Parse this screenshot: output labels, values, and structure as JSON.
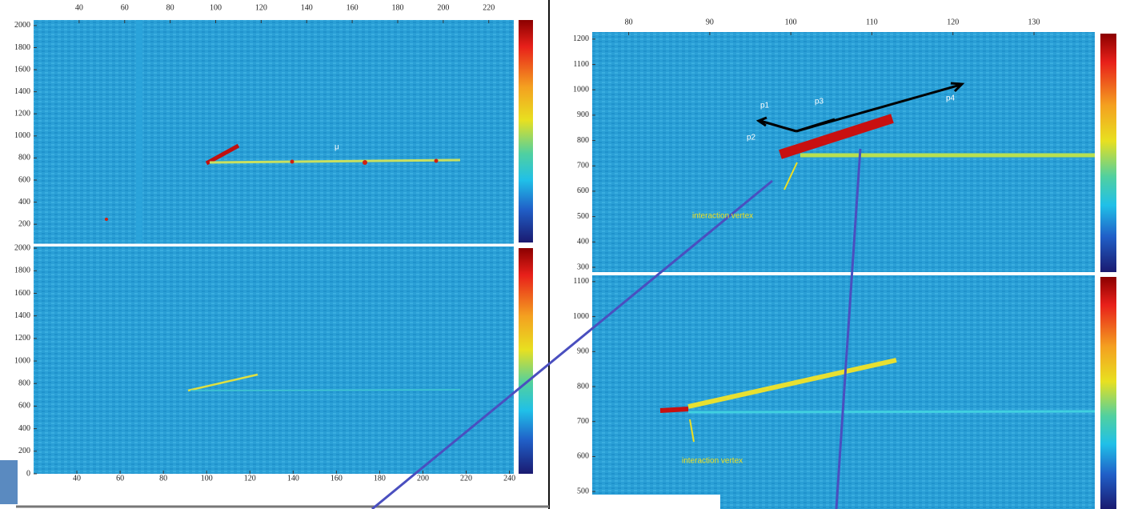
{
  "panels": [
    {
      "xlim": [
        20,
        231
      ],
      "ylim": [
        20,
        2050
      ],
      "xticks": [
        40,
        60,
        80,
        100,
        120,
        140,
        160,
        180,
        200,
        220
      ],
      "yticks": [
        200,
        400,
        600,
        800,
        1000,
        1200,
        1400,
        1600,
        1800,
        2000
      ]
    },
    {
      "xlim": [
        20,
        242
      ],
      "ylim": [
        0,
        2015
      ],
      "xticks": [
        40,
        60,
        80,
        100,
        120,
        140,
        160,
        180,
        200,
        220,
        240
      ],
      "yticks": [
        0,
        200,
        400,
        600,
        800,
        1000,
        1200,
        1400,
        1600,
        1800,
        2000
      ]
    },
    {
      "xlim": [
        75.5,
        137.5
      ],
      "ylim": [
        281,
        1228
      ],
      "xticks": [
        80,
        90,
        100,
        110,
        120,
        130
      ],
      "yticks": [
        300,
        400,
        500,
        600,
        700,
        800,
        900,
        1000,
        1100,
        1200
      ]
    },
    {
      "ylim": [
        450,
        1118
      ],
      "yticks": [
        500,
        600,
        700,
        800,
        900,
        1000,
        1100
      ]
    }
  ],
  "annotations": [
    "μ",
    "p1",
    "p2",
    "p3",
    "p4",
    "interaction vertex",
    "interaction vertex"
  ]
}
